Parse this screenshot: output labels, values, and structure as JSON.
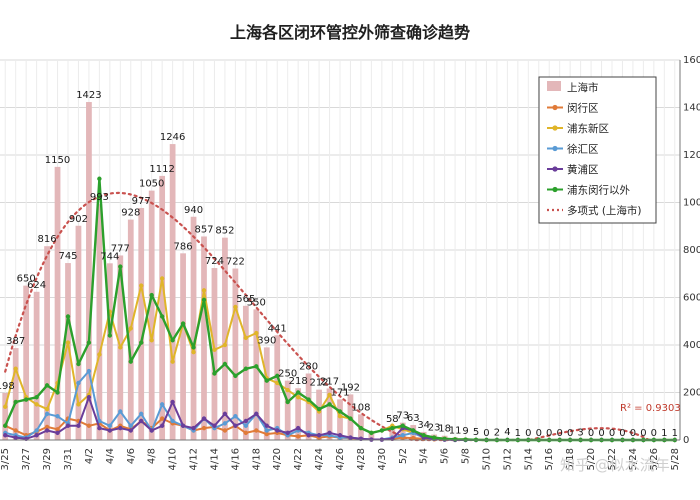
{
  "chart_data": {
    "type": "bar",
    "title": "上海各区闭环管控外筛查确诊趋势",
    "ylim": [
      0,
      1600
    ],
    "y_ticks": [
      0,
      200,
      400,
      600,
      800,
      1000,
      1200,
      1400,
      1600
    ],
    "grid": true,
    "legend_position": "top-right",
    "r2_label": "R² = 0.9303",
    "watermark": "知乎 @似水流年",
    "categories": [
      "3/25",
      "3/26",
      "3/27",
      "3/28",
      "3/29",
      "3/30",
      "3/31",
      "4/1",
      "4/2",
      "4/3",
      "4/4",
      "4/5",
      "4/6",
      "4/7",
      "4/8",
      "4/9",
      "4/10",
      "4/11",
      "4/12",
      "4/13",
      "4/14",
      "4/15",
      "4/16",
      "4/17",
      "4/18",
      "4/19",
      "4/20",
      "4/21",
      "4/22",
      "4/23",
      "4/24",
      "4/25",
      "4/26",
      "4/27",
      "4/28",
      "4/29",
      "4/30",
      "5/1",
      "5/2",
      "5/3",
      "5/4",
      "5/5",
      "5/6",
      "5/7",
      "5/8",
      "5/9",
      "5/10",
      "5/11",
      "5/12",
      "5/13",
      "5/14",
      "5/15",
      "5/16",
      "5/17",
      "5/18",
      "5/19",
      "5/20",
      "5/21",
      "5/22",
      "5/23",
      "5/24",
      "5/25",
      "5/26",
      "5/27",
      "5/28"
    ],
    "x_tick_labels": [
      "3/25",
      "3/27",
      "3/29",
      "3/31",
      "4/2",
      "4/4",
      "4/6",
      "4/8",
      "4/10",
      "4/12",
      "4/14",
      "4/16",
      "4/18",
      "4/20",
      "4/22",
      "4/24",
      "4/26",
      "4/28",
      "4/30",
      "5/2",
      "5/4",
      "5/6",
      "5/8",
      "5/10",
      "5/12",
      "5/14",
      "5/16",
      "5/18",
      "5/20",
      "5/22",
      "5/24",
      "5/26",
      "5/28"
    ],
    "bar_series": {
      "name": "上海市",
      "color": "#e3b7b9",
      "values": [
        198,
        387,
        650,
        624,
        816,
        1150,
        745,
        902,
        1423,
        993,
        744,
        777,
        928,
        977,
        1050,
        1112,
        1246,
        786,
        940,
        857,
        724,
        852,
        722,
        565,
        550,
        390,
        441,
        250,
        218,
        280,
        212,
        217,
        171,
        192,
        108,
        30,
        5,
        58,
        73,
        63,
        34,
        23,
        18,
        11,
        9,
        5,
        0,
        2,
        4,
        1,
        0,
        0,
        0,
        0,
        0,
        3,
        0,
        0,
        0,
        0,
        0,
        0,
        0,
        1,
        1
      ],
      "labels": [
        "198",
        "387",
        "650",
        "624",
        "816",
        "1150",
        "745",
        "902",
        "1423",
        "993",
        "744",
        "777",
        "928",
        "977",
        "1050",
        "1112",
        "1246",
        "786",
        "940",
        "857",
        "724",
        "852",
        "722",
        "565",
        "550",
        "390",
        "441",
        "250",
        "218",
        "280",
        "212",
        "217",
        "171",
        "192",
        "108",
        "",
        "",
        "58",
        "73",
        "63",
        "34",
        "23",
        "18",
        "11",
        "9",
        "5",
        "0",
        "2",
        "4",
        "1",
        "0",
        "0",
        "0",
        "0",
        "0",
        "3",
        "0",
        "0",
        "0",
        "0",
        "0",
        "0",
        "0",
        "1",
        "1"
      ]
    },
    "series": [
      {
        "name": "闵行区",
        "color": "#e07b39",
        "values": [
          60,
          40,
          20,
          35,
          55,
          45,
          90,
          80,
          60,
          70,
          40,
          60,
          45,
          80,
          50,
          90,
          70,
          60,
          40,
          50,
          55,
          40,
          60,
          30,
          40,
          25,
          30,
          20,
          15,
          20,
          10,
          15,
          10,
          8,
          5,
          2,
          2,
          5,
          10,
          8,
          5,
          3,
          2,
          1,
          1,
          0,
          0,
          0,
          0,
          0,
          0,
          0,
          0,
          0,
          0,
          0,
          0,
          0,
          0,
          0,
          0,
          0,
          0,
          0,
          0
        ]
      },
      {
        "name": "浦东新区",
        "color": "#e0b52a",
        "values": [
          140,
          300,
          180,
          150,
          130,
          240,
          410,
          150,
          190,
          360,
          540,
          390,
          470,
          650,
          420,
          680,
          330,
          490,
          370,
          630,
          380,
          400,
          560,
          430,
          450,
          260,
          240,
          210,
          180,
          160,
          120,
          190,
          100,
          90,
          50,
          30,
          40,
          60,
          45,
          30,
          20,
          10,
          5,
          3,
          2,
          1,
          0,
          0,
          0,
          0,
          0,
          0,
          0,
          0,
          0,
          0,
          0,
          0,
          0,
          0,
          0,
          0,
          0,
          0,
          0
        ]
      },
      {
        "name": "徐汇区",
        "color": "#5a9bd5",
        "values": [
          30,
          20,
          10,
          40,
          110,
          100,
          70,
          240,
          290,
          80,
          60,
          120,
          60,
          110,
          40,
          150,
          80,
          60,
          40,
          90,
          50,
          70,
          100,
          60,
          110,
          40,
          50,
          20,
          40,
          30,
          20,
          20,
          10,
          10,
          5,
          2,
          2,
          10,
          20,
          30,
          10,
          5,
          2,
          1,
          0,
          0,
          0,
          0,
          0,
          0,
          0,
          0,
          0,
          0,
          0,
          0,
          0,
          0,
          0,
          0,
          0,
          0,
          0,
          0,
          0
        ]
      },
      {
        "name": "黄浦区",
        "color": "#6a3d9a",
        "values": [
          20,
          10,
          5,
          20,
          40,
          30,
          60,
          60,
          180,
          50,
          40,
          50,
          40,
          80,
          40,
          60,
          160,
          60,
          50,
          90,
          60,
          110,
          60,
          80,
          110,
          60,
          40,
          30,
          50,
          20,
          20,
          30,
          20,
          10,
          5,
          2,
          2,
          5,
          50,
          40,
          10,
          5,
          2,
          0,
          0,
          0,
          0,
          0,
          0,
          0,
          0,
          0,
          0,
          0,
          0,
          0,
          0,
          0,
          0,
          0,
          0,
          0,
          0,
          0,
          0
        ]
      },
      {
        "name": "浦东闵行以外",
        "color": "#2ca02c",
        "values": [
          60,
          160,
          170,
          180,
          230,
          200,
          520,
          320,
          410,
          1100,
          440,
          730,
          330,
          410,
          610,
          520,
          420,
          490,
          390,
          590,
          280,
          320,
          270,
          300,
          310,
          250,
          270,
          160,
          200,
          170,
          130,
          150,
          120,
          90,
          50,
          30,
          40,
          50,
          60,
          40,
          20,
          10,
          5,
          3,
          2,
          1,
          0,
          0,
          0,
          0,
          0,
          0,
          0,
          0,
          0,
          0,
          0,
          0,
          0,
          0,
          0,
          0,
          0,
          0,
          0
        ]
      }
    ],
    "trend": {
      "name": "多项式 (上海市)",
      "color": "#c9524f"
    }
  }
}
